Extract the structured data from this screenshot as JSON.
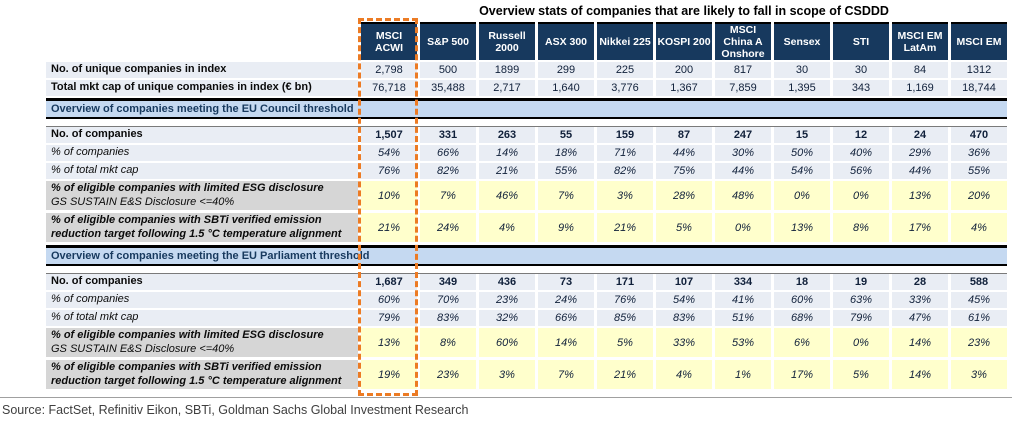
{
  "title": "Overview stats of companies that are likely to fall in scope of CSDDD",
  "source": "Source: FactSet, Refinitiv Eikon, SBTi, Goldman Sachs Global Investment Research",
  "colors": {
    "header_navy": "#17395E",
    "section_band_blue": "#C5D9F1",
    "highlight_yellow": "#FFFFCC",
    "highlight_label_gray": "#D6D6D6",
    "normal_cell": "#E9EDF4",
    "accent_orange": "#EC7B24"
  },
  "chart_data": {
    "type": "table",
    "title": "Overview stats of companies that are likely to fall in scope of CSDDD",
    "columns": [
      "MSCI ACWI",
      "S&P 500",
      "Russell 2000",
      "ASX 300",
      "Nikkei 225",
      "KOSPI 200",
      "MSCI China A Onshore",
      "Sensex",
      "STI",
      "MSCI EM LatAm",
      "MSCI EM"
    ],
    "highlighted_column": "MSCI ACWI",
    "index_rows": [
      {
        "label": "No. of unique companies in index",
        "values": [
          "2,798",
          "500",
          "1899",
          "299",
          "225",
          "200",
          "817",
          "30",
          "30",
          "84",
          "1312"
        ]
      },
      {
        "label": "Total mkt cap of unique companies in index (€ bn)",
        "values": [
          "76,718",
          "35,488",
          "2,717",
          "1,640",
          "3,776",
          "1,367",
          "7,859",
          "1,395",
          "343",
          "1,169",
          "18,744"
        ]
      }
    ],
    "sections": [
      {
        "header": "Overview of companies meeting the EU Council threshold",
        "rows": [
          {
            "label": "No. of companies",
            "style": "bold",
            "values": [
              "1,507",
              "331",
              "263",
              "55",
              "159",
              "87",
              "247",
              "15",
              "12",
              "24",
              "470"
            ]
          },
          {
            "label": "% of companies",
            "style": "italic",
            "values": [
              "54%",
              "66%",
              "14%",
              "18%",
              "71%",
              "44%",
              "30%",
              "50%",
              "40%",
              "29%",
              "36%"
            ]
          },
          {
            "label": "% of total mkt cap",
            "style": "italic",
            "values": [
              "76%",
              "82%",
              "21%",
              "55%",
              "82%",
              "75%",
              "44%",
              "54%",
              "56%",
              "44%",
              "55%"
            ]
          },
          {
            "label": "% of eligible companies with limited ESG disclosure",
            "sublabel": "GS SUSTAIN E&S Disclosure <=40%",
            "style": "highlight",
            "values": [
              "10%",
              "7%",
              "46%",
              "7%",
              "3%",
              "28%",
              "48%",
              "0%",
              "0%",
              "13%",
              "20%"
            ]
          },
          {
            "label": "% of eligible companies with SBTi verified emission reduction target following 1.5 °C temperature alignment",
            "style": "highlight",
            "values": [
              "21%",
              "24%",
              "4%",
              "9%",
              "21%",
              "5%",
              "0%",
              "13%",
              "8%",
              "17%",
              "4%"
            ]
          }
        ]
      },
      {
        "header": "Overview of companies meeting the EU Parliament threshold",
        "rows": [
          {
            "label": "No. of companies",
            "style": "bold",
            "values": [
              "1,687",
              "349",
              "436",
              "73",
              "171",
              "107",
              "334",
              "18",
              "19",
              "28",
              "588"
            ]
          },
          {
            "label": "% of companies",
            "style": "italic",
            "values": [
              "60%",
              "70%",
              "23%",
              "24%",
              "76%",
              "54%",
              "41%",
              "60%",
              "63%",
              "33%",
              "45%"
            ]
          },
          {
            "label": "% of total mkt cap",
            "style": "italic",
            "values": [
              "79%",
              "83%",
              "32%",
              "66%",
              "85%",
              "83%",
              "51%",
              "68%",
              "79%",
              "47%",
              "61%"
            ]
          },
          {
            "label": "% of eligible companies with limited ESG disclosure",
            "sublabel": "GS SUSTAIN E&S Disclosure <=40%",
            "style": "highlight",
            "values": [
              "13%",
              "8%",
              "60%",
              "14%",
              "5%",
              "33%",
              "53%",
              "6%",
              "0%",
              "14%",
              "23%"
            ]
          },
          {
            "label": "% of eligible companies with SBTi verified emission reduction target following 1.5 °C temperature alignment",
            "style": "highlight",
            "values": [
              "19%",
              "23%",
              "3%",
              "7%",
              "21%",
              "4%",
              "1%",
              "17%",
              "5%",
              "14%",
              "3%"
            ]
          }
        ]
      }
    ]
  }
}
